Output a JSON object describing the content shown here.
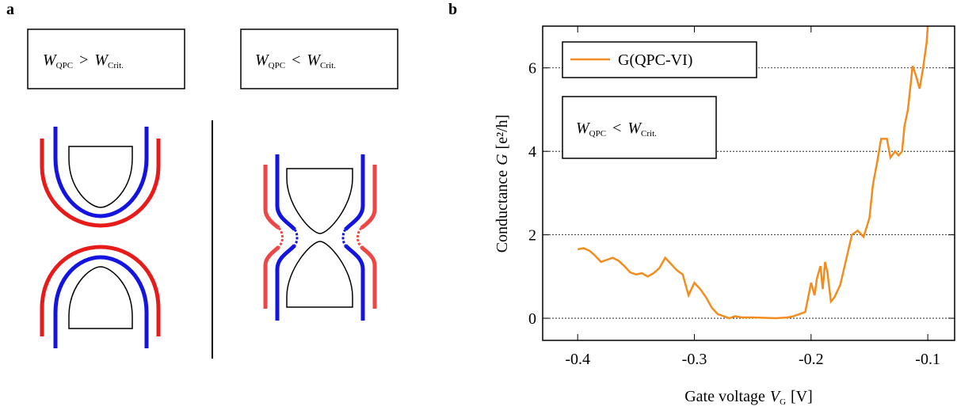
{
  "panel_labels": [
    "a",
    "b"
  ],
  "diagram": {
    "boxes": [
      {
        "symbol": "W",
        "sub": "QPC",
        "relation": ">",
        "symbol2": "W",
        "sub2": "Crit."
      },
      {
        "symbol": "W",
        "sub": "QPC",
        "relation": "<",
        "symbol2": "W",
        "sub2": "Crit."
      }
    ]
  },
  "chart_data": {
    "type": "line",
    "x_label": {
      "text": "Gate voltage",
      "symbol": "V",
      "sub": "G",
      "unit": "[V]"
    },
    "y_label": {
      "text": "Conductance",
      "symbol": "G",
      "unit": "[e²/h]"
    },
    "annotation": {
      "symbol": "W",
      "sub": "QPC",
      "relation": "<",
      "symbol2": "W",
      "sub2": "Crit."
    },
    "x": [
      -0.4,
      -0.395,
      -0.39,
      -0.385,
      -0.38,
      -0.375,
      -0.37,
      -0.365,
      -0.36,
      -0.355,
      -0.35,
      -0.345,
      -0.34,
      -0.335,
      -0.33,
      -0.325,
      -0.32,
      -0.315,
      -0.31,
      -0.305,
      -0.3,
      -0.295,
      -0.29,
      -0.285,
      -0.28,
      -0.275,
      -0.27,
      -0.265,
      -0.26,
      -0.25,
      -0.24,
      -0.23,
      -0.22,
      -0.215,
      -0.21,
      -0.205,
      -0.2,
      -0.197,
      -0.195,
      -0.192,
      -0.19,
      -0.188,
      -0.186,
      -0.183,
      -0.18,
      -0.175,
      -0.17,
      -0.165,
      -0.16,
      -0.155,
      -0.15,
      -0.147,
      -0.143,
      -0.14,
      -0.135,
      -0.132,
      -0.128,
      -0.125,
      -0.122,
      -0.12,
      -0.117,
      -0.113,
      -0.11,
      -0.107,
      -0.104,
      -0.101,
      -0.1
    ],
    "series": [
      {
        "name": "G(QPC-VI)",
        "color": "#f28c1e",
        "values": [
          1.65,
          1.68,
          1.62,
          1.5,
          1.35,
          1.4,
          1.45,
          1.38,
          1.25,
          1.1,
          1.05,
          1.08,
          1.0,
          1.08,
          1.2,
          1.45,
          1.3,
          1.15,
          1.05,
          0.55,
          0.85,
          0.7,
          0.5,
          0.25,
          0.1,
          0.05,
          0.0,
          0.05,
          0.02,
          0.02,
          0.01,
          0.0,
          0.02,
          0.05,
          0.1,
          0.15,
          0.85,
          0.55,
          0.95,
          1.25,
          0.7,
          1.35,
          1.1,
          0.4,
          0.5,
          0.8,
          1.4,
          2.0,
          2.1,
          1.95,
          2.4,
          3.2,
          3.8,
          4.3,
          4.3,
          3.85,
          4.0,
          3.9,
          4.0,
          4.6,
          5.0,
          6.05,
          5.8,
          5.5,
          6.0,
          6.6,
          7.0
        ]
      }
    ],
    "xlim": [
      -0.43,
      -0.077
    ],
    "ylim": [
      -0.53,
      7.0
    ],
    "xticks": [
      -0.4,
      -0.3,
      -0.2,
      -0.1
    ],
    "yticks": [
      0,
      2,
      4,
      6
    ],
    "grid": true,
    "legend": "upper left"
  }
}
